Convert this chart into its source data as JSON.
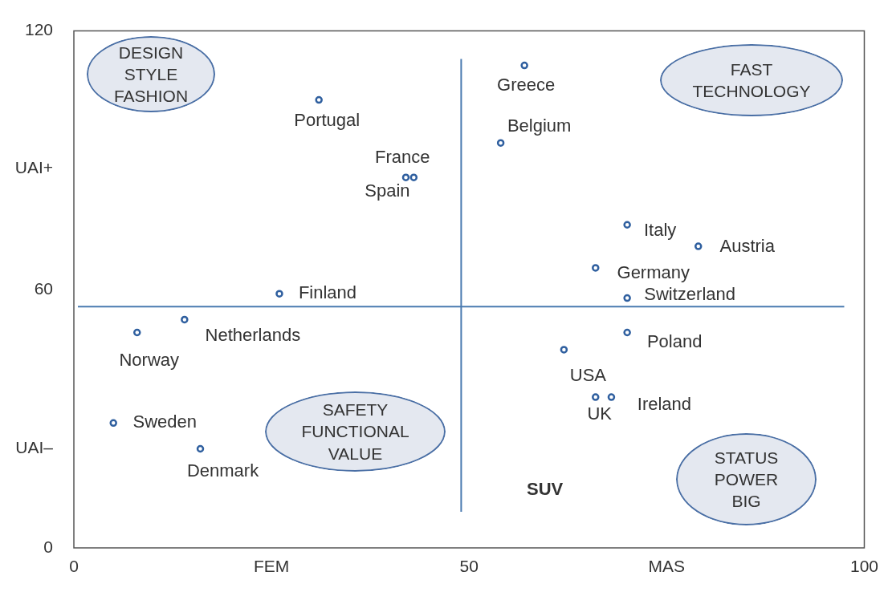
{
  "chart_data": {
    "type": "scatter",
    "xlim": [
      0,
      100
    ],
    "ylim": [
      0,
      120
    ],
    "xticks": [
      0,
      {
        "value": 25,
        "label": "FEM"
      },
      50,
      {
        "value": 75,
        "label": "MAS"
      },
      100
    ],
    "yticks": [
      0,
      {
        "value": 23,
        "label": "UAI–"
      },
      60,
      {
        "value": 88,
        "label": "UAI+"
      },
      120
    ],
    "grid": false,
    "legend": false,
    "marker": "circle",
    "series": [
      {
        "color": "#2f5f9f",
        "x": [
          57,
          31,
          54,
          43,
          42,
          70,
          79,
          66,
          70,
          26,
          14,
          8,
          70,
          62,
          66,
          68,
          5,
          16
        ],
        "values": [
          112,
          104,
          94,
          86,
          86,
          75,
          70,
          65,
          58,
          59,
          53,
          50,
          50,
          46,
          35,
          35,
          29,
          23
        ]
      }
    ],
    "ref_lines": [
      {
        "axis": "x",
        "value": 49,
        "color": "#4a7ab0"
      },
      {
        "axis": "y",
        "value": 56,
        "color": "#4a7ab0"
      }
    ],
    "annotations": [
      "DESIGN\nSTYLE\nFASHION",
      "FAST\nTECHNOLOGY",
      "SAFETY\nFUNCTIONAL\nVALUE",
      "STATUS\nPOWER\nBIG",
      "SUV",
      {
        "text": "Greece",
        "x": 57,
        "y": 112
      },
      {
        "text": "Portugal",
        "x": 31,
        "y": 104
      },
      {
        "text": "Belgium",
        "x": 54,
        "y": 94
      },
      {
        "text": "France",
        "x": 43,
        "y": 86
      },
      {
        "text": "Spain",
        "x": 42,
        "y": 86
      },
      {
        "text": "Italy",
        "x": 70,
        "y": 75
      },
      {
        "text": "Austria",
        "x": 79,
        "y": 70
      },
      {
        "text": "Germany",
        "x": 66,
        "y": 65
      },
      {
        "text": "Switzerland",
        "x": 70,
        "y": 58
      },
      {
        "text": "Finland",
        "x": 26,
        "y": 59
      },
      {
        "text": "Netherlands",
        "x": 14,
        "y": 53
      },
      {
        "text": "Norway",
        "x": 8,
        "y": 50
      },
      {
        "text": "Poland",
        "x": 70,
        "y": 50
      },
      {
        "text": "USA",
        "x": 62,
        "y": 46
      },
      {
        "text": "UK",
        "x": 66,
        "y": 35
      },
      {
        "text": "Ireland",
        "x": 68,
        "y": 35
      },
      {
        "text": "Sweden",
        "x": 5,
        "y": 29
      },
      {
        "text": "Denmark",
        "x": 16,
        "y": 23
      }
    ]
  }
}
